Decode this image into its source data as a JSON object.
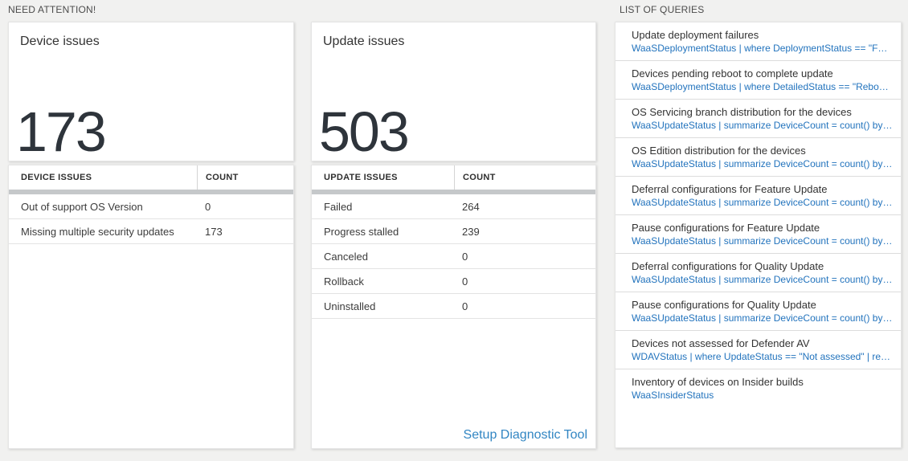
{
  "colors": {
    "page_background": "#f1f1f0",
    "card_background": "#ffffff",
    "big_number": "#2e343b",
    "query_link_blue": "#2273bd",
    "setup_link_blue": "#3286c3",
    "header_bar_gray": "#c5c8ca"
  },
  "sections": {
    "need_attention": "NEED ATTENTION!",
    "list_of_queries": "LIST OF QUERIES"
  },
  "device_summary": {
    "title": "Device issues",
    "count": "173"
  },
  "update_summary": {
    "title": "Update issues",
    "count": "503"
  },
  "device_table": {
    "headers": [
      "DEVICE ISSUES",
      "COUNT"
    ],
    "rows": [
      {
        "label": "Out of support OS Version",
        "count": "0"
      },
      {
        "label": "Missing multiple security updates",
        "count": "173"
      }
    ]
  },
  "update_table": {
    "headers": [
      "UPDATE ISSUES",
      "COUNT"
    ],
    "rows": [
      {
        "label": "Failed",
        "count": "264"
      },
      {
        "label": "Progress stalled",
        "count": "239"
      },
      {
        "label": "Canceled",
        "count": "0"
      },
      {
        "label": "Rollback",
        "count": "0"
      },
      {
        "label": "Uninstalled",
        "count": "0"
      }
    ],
    "footer_link": "Setup Diagnostic Tool"
  },
  "queries": [
    {
      "title": "Update deployment failures",
      "query": "WaaSDeploymentStatus | where DeploymentStatus == \"Failed\" |..."
    },
    {
      "title": "Devices pending reboot to complete update",
      "query": "WaaSDeploymentStatus | where DetailedStatus == \"Reboot pend..."
    },
    {
      "title": "OS Servicing branch distribution for the devices",
      "query": "WaaSUpdateStatus | summarize DeviceCount = count() by OSSer..."
    },
    {
      "title": "OS Edition distribution for the devices",
      "query": "WaaSUpdateStatus | summarize DeviceCount = count() by OSEdit..."
    },
    {
      "title": "Deferral configurations for Feature Update",
      "query": "WaaSUpdateStatus | summarize DeviceCount = count() by Featur..."
    },
    {
      "title": "Pause configurations for Feature Update",
      "query": "WaaSUpdateStatus | summarize DeviceCount = count() by Featur..."
    },
    {
      "title": "Deferral configurations for Quality Update",
      "query": "WaaSUpdateStatus | summarize DeviceCount = count() by Qualit..."
    },
    {
      "title": "Pause configurations for Quality Update",
      "query": "WaaSUpdateStatus | summarize DeviceCount = count() by Qualit..."
    },
    {
      "title": "Devices not assessed for Defender AV",
      "query": "WDAVStatus | where UpdateStatus == \"Not assessed\" | render ta..."
    },
    {
      "title": "Inventory of devices on Insider builds",
      "query": "WaaSInsiderStatus"
    }
  ]
}
